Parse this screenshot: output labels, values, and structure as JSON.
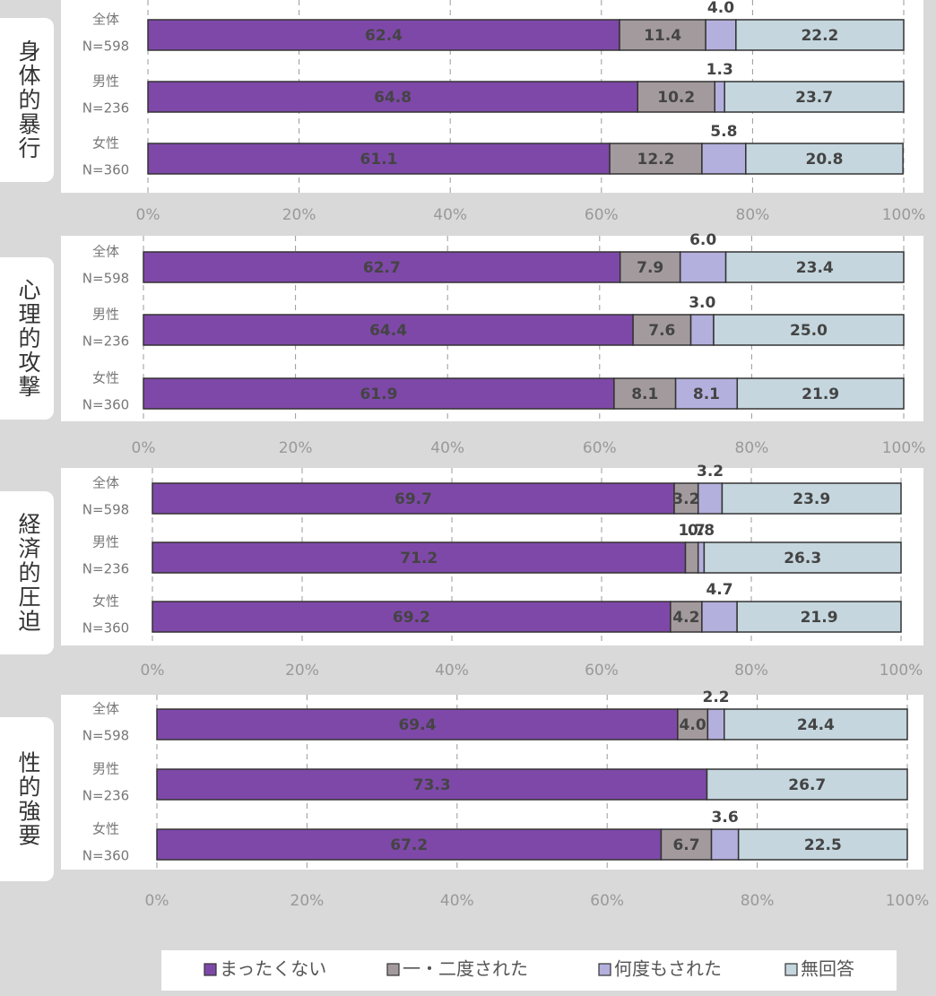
{
  "chart_data": [
    {
      "type": "bar",
      "orientation": "horizontal",
      "stacked": true,
      "title": "身体的暴行",
      "categories": [
        "全体",
        "男性",
        "女性"
      ],
      "n_labels": [
        "N=598",
        "N=236",
        "N=360"
      ],
      "series": [
        {
          "name": "まったくない",
          "color": "#7e48a8",
          "values": [
            62.4,
            64.8,
            61.1
          ],
          "value_labels": [
            "62.4",
            "64.8",
            "61.1"
          ]
        },
        {
          "name": "一・二度された",
          "color": "#a39a9e",
          "values": [
            11.4,
            10.2,
            12.2
          ],
          "value_labels": [
            "11.4",
            "10.2",
            "12.2"
          ]
        },
        {
          "name": "何度もされた",
          "color": "#b4b0dd",
          "values": [
            4.0,
            1.3,
            5.8
          ],
          "value_labels": [
            "4.0",
            "1.3",
            "5.8"
          ]
        },
        {
          "name": "無回答",
          "color": "#c5d6de",
          "values": [
            22.2,
            23.7,
            20.8
          ],
          "value_labels": [
            "22.2",
            "23.7",
            "20.8"
          ]
        }
      ],
      "xlim": [
        0,
        100
      ],
      "xticks": [
        {
          "value": 0,
          "label": "0%"
        },
        {
          "value": 20,
          "label": "20%"
        },
        {
          "value": 40,
          "label": "40%"
        },
        {
          "value": 60,
          "label": "60%"
        },
        {
          "value": 80,
          "label": "80%"
        },
        {
          "value": 100,
          "label": "100%"
        }
      ],
      "grid": true
    },
    {
      "type": "bar",
      "orientation": "horizontal",
      "stacked": true,
      "title": "心理的攻撃",
      "categories": [
        "全体",
        "男性",
        "女性"
      ],
      "n_labels": [
        "N=598",
        "N=236",
        "N=360"
      ],
      "series": [
        {
          "name": "まったくない",
          "color": "#7e48a8",
          "values": [
            62.7,
            64.4,
            61.9
          ],
          "value_labels": [
            "62.7",
            "64.4",
            "61.9"
          ]
        },
        {
          "name": "一・二度された",
          "color": "#a39a9e",
          "values": [
            7.9,
            7.6,
            8.1
          ],
          "value_labels": [
            "7.9",
            "7.6",
            "8.1"
          ]
        },
        {
          "name": "何度もされた",
          "color": "#b4b0dd",
          "values": [
            6.0,
            3.0,
            8.1
          ],
          "value_labels": [
            "6.0",
            "3.0",
            "8.1"
          ]
        },
        {
          "name": "無回答",
          "color": "#c5d6de",
          "values": [
            23.4,
            25.0,
            21.9
          ],
          "value_labels": [
            "23.4",
            "25.0",
            "21.9"
          ]
        }
      ],
      "xlim": [
        0,
        100
      ],
      "xticks": [
        {
          "value": 0,
          "label": "0%"
        },
        {
          "value": 20,
          "label": "20%"
        },
        {
          "value": 40,
          "label": "40%"
        },
        {
          "value": 60,
          "label": "60%"
        },
        {
          "value": 80,
          "label": "80%"
        },
        {
          "value": 100,
          "label": "100%"
        }
      ],
      "grid": true
    },
    {
      "type": "bar",
      "orientation": "horizontal",
      "stacked": true,
      "title": "経済的圧迫",
      "categories": [
        "全体",
        "男性",
        "女性"
      ],
      "n_labels": [
        "N=598",
        "N=236",
        "N=360"
      ],
      "series": [
        {
          "name": "まったくない",
          "color": "#7e48a8",
          "values": [
            69.7,
            71.2,
            69.2
          ],
          "value_labels": [
            "69.7",
            "71.2",
            "69.2"
          ]
        },
        {
          "name": "一・二度された",
          "color": "#a39a9e",
          "values": [
            3.2,
            1.7,
            4.2
          ],
          "value_labels": [
            "3.2",
            "1.7",
            "4.2"
          ]
        },
        {
          "name": "何度もされた",
          "color": "#b4b0dd",
          "values": [
            3.2,
            0.8,
            4.7
          ],
          "value_labels": [
            "3.2",
            "0.8",
            "4.7"
          ]
        },
        {
          "name": "無回答",
          "color": "#c5d6de",
          "values": [
            23.9,
            26.3,
            21.9
          ],
          "value_labels": [
            "23.9",
            "26.3",
            "21.9"
          ]
        }
      ],
      "xlim": [
        0,
        100
      ],
      "xticks": [
        {
          "value": 0,
          "label": "0%"
        },
        {
          "value": 20,
          "label": "20%"
        },
        {
          "value": 40,
          "label": "40%"
        },
        {
          "value": 60,
          "label": "60%"
        },
        {
          "value": 80,
          "label": "80%"
        },
        {
          "value": 100,
          "label": "100%"
        }
      ],
      "grid": true
    },
    {
      "type": "bar",
      "orientation": "horizontal",
      "stacked": true,
      "title": "性的強要",
      "categories": [
        "全体",
        "男性",
        "女性"
      ],
      "n_labels": [
        "N=598",
        "N=236",
        "N=360"
      ],
      "series": [
        {
          "name": "まったくない",
          "color": "#7e48a8",
          "values": [
            69.4,
            73.3,
            67.2
          ],
          "value_labels": [
            "69.4",
            "73.3",
            "67.2"
          ]
        },
        {
          "name": "一・二度された",
          "color": "#a39a9e",
          "values": [
            4.0,
            0,
            6.7
          ],
          "value_labels": [
            "4.0",
            null,
            "6.7"
          ]
        },
        {
          "name": "何度もされた",
          "color": "#b4b0dd",
          "values": [
            2.2,
            0,
            3.6
          ],
          "value_labels": [
            "2.2",
            null,
            "3.6"
          ]
        },
        {
          "name": "無回答",
          "color": "#c5d6de",
          "values": [
            24.4,
            26.7,
            22.5
          ],
          "value_labels": [
            "24.4",
            "26.7",
            "22.5"
          ]
        }
      ],
      "xlim": [
        0,
        100
      ],
      "xticks": [
        {
          "value": 0,
          "label": "0%"
        },
        {
          "value": 20,
          "label": "20%"
        },
        {
          "value": 40,
          "label": "40%"
        },
        {
          "value": 60,
          "label": "60%"
        },
        {
          "value": 80,
          "label": "80%"
        },
        {
          "value": 100,
          "label": "100%"
        }
      ],
      "grid": true
    }
  ]
}
